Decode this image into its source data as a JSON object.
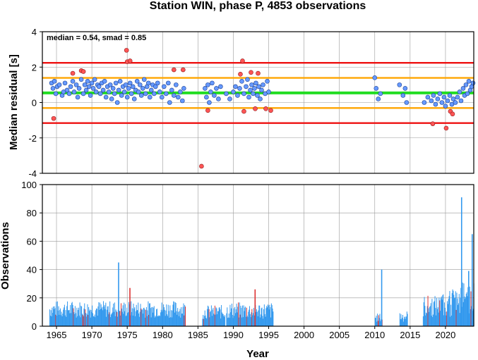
{
  "title": "Station WIN, phase P, 4853 observations",
  "chart_data": [
    {
      "type": "scatter",
      "ylabel": "Median residual [s]",
      "xlim": [
        1963,
        2024
      ],
      "ylim": [
        -4,
        4
      ],
      "yticks": [
        -4,
        -2,
        0,
        2,
        4
      ],
      "grid": true,
      "annotation": "median = 0.54, smad = 0.85",
      "reference_lines": [
        {
          "y": 0.54,
          "color": "#22dd22",
          "role": "median"
        },
        {
          "y": 1.39,
          "color": "#ffa500",
          "role": "+1 smad"
        },
        {
          "y": -0.31,
          "color": "#ffa500",
          "role": "-1 smad"
        },
        {
          "y": 2.24,
          "color": "#ee1111",
          "role": "+2 smad"
        },
        {
          "y": -1.16,
          "color": "#ee1111",
          "role": "-2 smad"
        }
      ],
      "point_colors": {
        "inlier": "#6699ff",
        "outlier": "#ff5555"
      },
      "inliers": [
        [
          1964.3,
          1.1
        ],
        [
          1964.5,
          0.8
        ],
        [
          1964.7,
          1.2
        ],
        [
          1964.9,
          0.5
        ],
        [
          1965.1,
          0.9
        ],
        [
          1965.4,
          1.0
        ],
        [
          1965.8,
          0.4
        ],
        [
          1966.0,
          0.6
        ],
        [
          1966.2,
          1.1
        ],
        [
          1966.5,
          0.7
        ],
        [
          1966.8,
          0.5
        ],
        [
          1967.0,
          0.9
        ],
        [
          1967.3,
          1.2
        ],
        [
          1967.5,
          0.6
        ],
        [
          1967.8,
          1.0
        ],
        [
          1968.0,
          0.3
        ],
        [
          1968.2,
          0.8
        ],
        [
          1968.5,
          1.3
        ],
        [
          1968.8,
          0.5
        ],
        [
          1969.0,
          1.0
        ],
        [
          1969.2,
          0.7
        ],
        [
          1969.4,
          1.2
        ],
        [
          1969.6,
          0.9
        ],
        [
          1969.8,
          0.4
        ],
        [
          1970.0,
          1.1
        ],
        [
          1970.2,
          0.8
        ],
        [
          1970.4,
          1.3
        ],
        [
          1970.6,
          0.6
        ],
        [
          1970.8,
          1.0
        ],
        [
          1971.0,
          0.9
        ],
        [
          1971.2,
          0.5
        ],
        [
          1971.4,
          1.1
        ],
        [
          1971.6,
          0.7
        ],
        [
          1971.8,
          1.2
        ],
        [
          1972.0,
          0.3
        ],
        [
          1972.2,
          0.9
        ],
        [
          1972.4,
          0.6
        ],
        [
          1972.6,
          1.0
        ],
        [
          1972.8,
          0.2
        ],
        [
          1973.0,
          0.8
        ],
        [
          1973.2,
          0.5
        ],
        [
          1973.4,
          1.1
        ],
        [
          1973.6,
          0.0
        ],
        [
          1973.8,
          0.7
        ],
        [
          1974.0,
          1.2
        ],
        [
          1974.2,
          0.4
        ],
        [
          1974.4,
          0.9
        ],
        [
          1974.6,
          0.6
        ],
        [
          1974.8,
          1.0
        ],
        [
          1975.0,
          0.3
        ],
        [
          1975.2,
          0.8
        ],
        [
          1975.4,
          1.1
        ],
        [
          1975.6,
          0.5
        ],
        [
          1975.8,
          0.9
        ],
        [
          1976.0,
          0.2
        ],
        [
          1976.2,
          0.7
        ],
        [
          1976.4,
          1.2
        ],
        [
          1976.6,
          0.6
        ],
        [
          1976.8,
          1.0
        ],
        [
          1977.0,
          0.4
        ],
        [
          1977.2,
          0.8
        ],
        [
          1977.4,
          1.3
        ],
        [
          1977.6,
          0.5
        ],
        [
          1977.8,
          0.9
        ],
        [
          1978.0,
          1.1
        ],
        [
          1978.2,
          0.3
        ],
        [
          1978.4,
          0.7
        ],
        [
          1978.6,
          1.0
        ],
        [
          1978.8,
          0.5
        ],
        [
          1979.0,
          0.9
        ],
        [
          1979.3,
          1.1
        ],
        [
          1979.6,
          0.6
        ],
        [
          1979.9,
          0.3
        ],
        [
          1980.2,
          0.9
        ],
        [
          1980.5,
          0.5
        ],
        [
          1980.8,
          1.1
        ],
        [
          1981.0,
          0.0
        ],
        [
          1981.3,
          0.7
        ],
        [
          1981.6,
          0.4
        ],
        [
          1981.9,
          1.0
        ],
        [
          1982.2,
          0.3
        ],
        [
          1982.5,
          0.6
        ],
        [
          1982.8,
          0.1
        ],
        [
          1983.0,
          0.8
        ],
        [
          1986.0,
          0.8
        ],
        [
          1986.2,
          0.3
        ],
        [
          1986.4,
          1.0
        ],
        [
          1986.6,
          0.0
        ],
        [
          1986.8,
          0.6
        ],
        [
          1987.0,
          1.1
        ],
        [
          1987.3,
          0.4
        ],
        [
          1987.6,
          0.8
        ],
        [
          1987.9,
          0.2
        ],
        [
          1988.2,
          0.9
        ],
        [
          1989.0,
          0.5
        ],
        [
          1989.5,
          0.2
        ],
        [
          1990.0,
          0.6
        ],
        [
          1990.3,
          0.9
        ],
        [
          1990.6,
          0.4
        ],
        [
          1990.9,
          0.8
        ],
        [
          1991.2,
          1.2
        ],
        [
          1991.5,
          0.5
        ],
        [
          1991.8,
          0.9
        ],
        [
          1992.0,
          1.3
        ],
        [
          1992.2,
          0.3
        ],
        [
          1992.4,
          0.7
        ],
        [
          1992.6,
          1.0
        ],
        [
          1992.8,
          0.5
        ],
        [
          1993.0,
          0.8
        ],
        [
          1993.2,
          1.1
        ],
        [
          1993.4,
          0.4
        ],
        [
          1993.6,
          0.9
        ],
        [
          1993.8,
          0.2
        ],
        [
          1994.0,
          0.7
        ],
        [
          1994.2,
          1.0
        ],
        [
          1994.5,
          0.5
        ],
        [
          1994.8,
          1.2
        ],
        [
          1995.0,
          0.6
        ],
        [
          2010.0,
          1.4
        ],
        [
          2010.2,
          0.8
        ],
        [
          2010.5,
          0.2
        ],
        [
          2010.8,
          0.5
        ],
        [
          2013.5,
          1.0
        ],
        [
          2014.0,
          0.4
        ],
        [
          2014.3,
          0.8
        ],
        [
          2014.5,
          0.0
        ],
        [
          2017.0,
          0.0
        ],
        [
          2017.5,
          0.3
        ],
        [
          2018.0,
          0.1
        ],
        [
          2018.3,
          0.4
        ],
        [
          2018.6,
          -0.1
        ],
        [
          2018.9,
          0.2
        ],
        [
          2019.2,
          0.5
        ],
        [
          2019.5,
          0.0
        ],
        [
          2019.8,
          0.3
        ],
        [
          2020.0,
          -0.2
        ],
        [
          2020.3,
          0.1
        ],
        [
          2020.6,
          0.4
        ],
        [
          2020.9,
          -0.1
        ],
        [
          2021.1,
          0.2
        ],
        [
          2021.4,
          0.0
        ],
        [
          2021.7,
          0.3
        ],
        [
          2022.0,
          0.6
        ],
        [
          2022.2,
          0.1
        ],
        [
          2022.5,
          0.8
        ],
        [
          2022.7,
          0.4
        ],
        [
          2022.9,
          1.0
        ],
        [
          2023.1,
          0.5
        ],
        [
          2023.3,
          1.2
        ],
        [
          2023.5,
          0.7
        ],
        [
          2023.7,
          0.9
        ],
        [
          2023.9,
          1.1
        ]
      ],
      "outliers": [
        [
          1964.6,
          -0.9
        ],
        [
          1967.3,
          1.65
        ],
        [
          1968.5,
          1.8
        ],
        [
          1968.8,
          1.75
        ],
        [
          1974.9,
          2.95
        ],
        [
          1975.0,
          2.3
        ],
        [
          1975.4,
          2.35
        ],
        [
          1981.6,
          1.85
        ],
        [
          1982.9,
          1.85
        ],
        [
          1985.5,
          -3.6
        ],
        [
          1986.4,
          -0.45
        ],
        [
          1991.0,
          1.6
        ],
        [
          1991.3,
          2.35
        ],
        [
          1991.5,
          -0.5
        ],
        [
          1992.5,
          1.7
        ],
        [
          1993.1,
          -0.35
        ],
        [
          1993.5,
          1.65
        ],
        [
          1994.6,
          -0.35
        ],
        [
          1995.3,
          -0.45
        ],
        [
          2018.2,
          -1.2
        ],
        [
          2020.1,
          -1.45
        ],
        [
          2020.7,
          -0.5
        ],
        [
          2021.0,
          -0.65
        ]
      ]
    },
    {
      "type": "bar",
      "xlabel": "Year",
      "ylabel": "Observations",
      "xlim": [
        1963,
        2024
      ],
      "ylim": [
        0,
        100
      ],
      "xticks": [
        1965,
        1970,
        1975,
        1980,
        1985,
        1990,
        1995,
        2000,
        2005,
        2010,
        2015,
        2020
      ],
      "yticks": [
        0,
        20,
        40,
        60,
        80,
        100
      ],
      "grid": true,
      "bar_colors": {
        "inlier": "#3399ee",
        "outlier": "#dd3333"
      },
      "spikes": [
        {
          "x": 1973.7,
          "value": 45
        },
        {
          "x": 1975.3,
          "value": 27,
          "outlier": true
        },
        {
          "x": 1993.0,
          "value": 26,
          "outlier": true
        },
        {
          "x": 2010.9,
          "value": 40
        },
        {
          "x": 2022.2,
          "value": 91
        },
        {
          "x": 2023.7,
          "value": 65
        },
        {
          "x": 2023.2,
          "value": 39
        }
      ]
    }
  ]
}
